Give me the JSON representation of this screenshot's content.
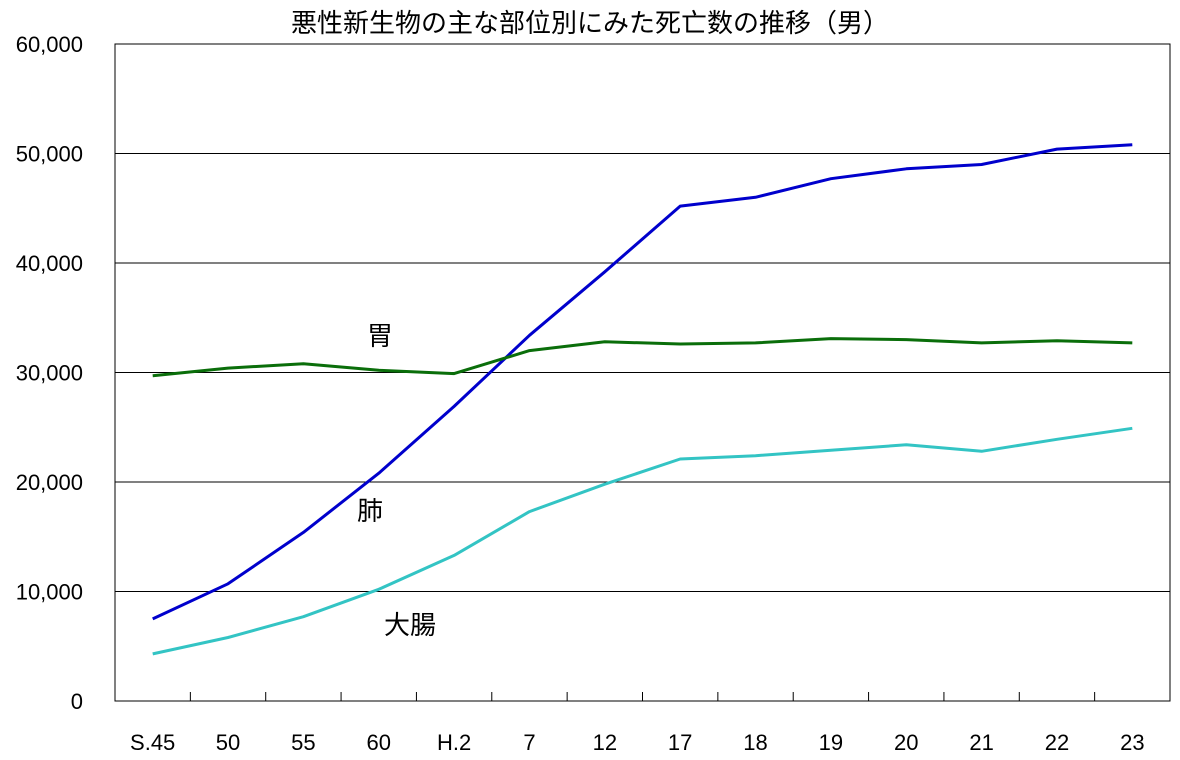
{
  "chart_data": {
    "type": "line",
    "title": "悪性新生物の主な部位別にみた死亡数の推移（男）",
    "xlabel": "",
    "ylabel": "",
    "categories": [
      "S.45",
      "50",
      "55",
      "60",
      "H.2",
      "7",
      "12",
      "17",
      "18",
      "19",
      "20",
      "21",
      "22",
      "23"
    ],
    "ylim": [
      0,
      60000
    ],
    "yticks": [
      "0",
      "10,000",
      "20,000",
      "30,000",
      "40,000",
      "50,000",
      "60,000"
    ],
    "grid": true,
    "series": [
      {
        "name": "肺",
        "color": "#0000cc",
        "values": [
          7500,
          10700,
          15400,
          20800,
          26900,
          33400,
          39200,
          45200,
          46000,
          47700,
          48600,
          49000,
          50400,
          50800
        ]
      },
      {
        "name": "胃",
        "color": "#0a6e0a",
        "values": [
          29700,
          30400,
          30800,
          30200,
          29900,
          32000,
          32800,
          32600,
          32700,
          33100,
          33000,
          32700,
          32900,
          32700
        ]
      },
      {
        "name": "大腸",
        "color": "#33c4c4",
        "values": [
          4300,
          5800,
          7700,
          10200,
          13300,
          17300,
          19800,
          22100,
          22400,
          22900,
          23400,
          22800,
          23900,
          24900
        ]
      }
    ]
  }
}
